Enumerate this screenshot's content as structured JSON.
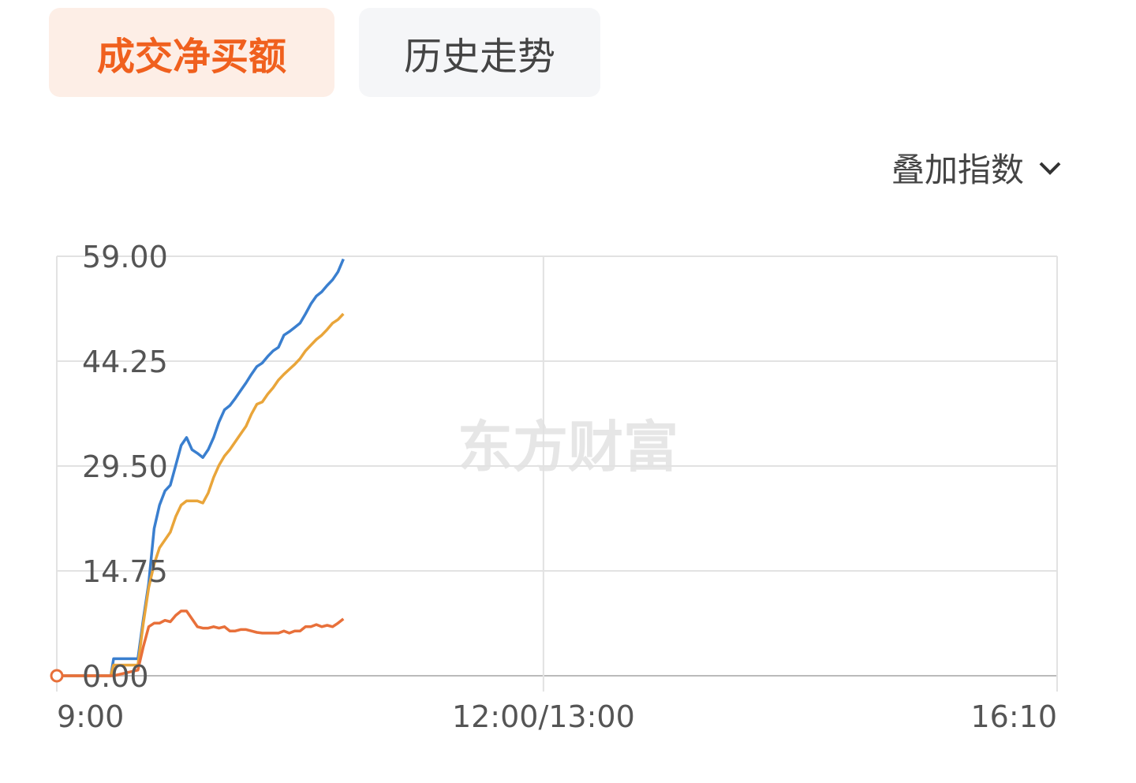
{
  "tabs": [
    "成交净买额",
    "历史走势"
  ],
  "overlay_menu": "叠加指数",
  "chart_data": {
    "type": "line",
    "watermark": "东方财富",
    "x": [
      0,
      20,
      21,
      30,
      32,
      34,
      36,
      38,
      40,
      42,
      44,
      46,
      48,
      50,
      52,
      54,
      56,
      58,
      60,
      62,
      64,
      66,
      68,
      70,
      72,
      74,
      76,
      78,
      80,
      82,
      84,
      86,
      88,
      90,
      92,
      94,
      96,
      98,
      100,
      102,
      104,
      106
    ],
    "xlim": [
      0,
      370
    ],
    "xticks": [
      {
        "value": 0,
        "label": "9:00"
      },
      {
        "value": 180,
        "label": "12:00/13:00"
      },
      {
        "value": 370,
        "label": "16:10"
      }
    ],
    "ylim": [
      0,
      59
    ],
    "yticks": [
      {
        "value": 0,
        "label": "0.00"
      },
      14.75,
      {
        "value": 29.5,
        "label": "29.50"
      },
      44.25,
      {
        "value": 59,
        "label": "59.00"
      }
    ],
    "grid": true,
    "series": [
      {
        "color": "#3a7fcf",
        "values": [
          0,
          0,
          2.4,
          2.4,
          8,
          13,
          20.7,
          24,
          26,
          26.8,
          29.6,
          32.4,
          33.5,
          31.8,
          31.3,
          30.7,
          31.8,
          33.5,
          35.7,
          37.4,
          38,
          39,
          40.1,
          41.2,
          42.4,
          43.5,
          44,
          44.9,
          45.7,
          46.2,
          47.9,
          48.4,
          49,
          49.6,
          50.9,
          52.3,
          53.4,
          54,
          54.9,
          55.7,
          56.8,
          58.6
        ]
      },
      {
        "color": "#e9a53a",
        "values": [
          0,
          0,
          1.5,
          1.5,
          7.4,
          12.4,
          15.7,
          18,
          19.1,
          20.2,
          22.4,
          24,
          24.6,
          24.6,
          24.6,
          24.3,
          25.7,
          27.9,
          29.6,
          30.9,
          31.8,
          32.9,
          34,
          35.1,
          36.8,
          38.2,
          38.5,
          39.6,
          40.5,
          41.6,
          42.4,
          43.1,
          43.8,
          44.6,
          45.7,
          46.5,
          47.3,
          47.9,
          48.7,
          49.6,
          50.1,
          50.9
        ]
      },
      {
        "color": "#e8703a",
        "values": [
          0,
          0,
          0,
          0.8,
          4.1,
          6.9,
          7.4,
          7.4,
          7.8,
          7.6,
          8.5,
          9.1,
          9.1,
          8,
          6.9,
          6.7,
          6.7,
          6.9,
          6.7,
          6.9,
          6.3,
          6.3,
          6.5,
          6.5,
          6.3,
          6.1,
          6,
          6,
          6,
          6,
          6.3,
          6,
          6.3,
          6.3,
          6.9,
          6.9,
          7.2,
          6.9,
          7.1,
          6.9,
          7.4,
          8
        ]
      }
    ]
  }
}
